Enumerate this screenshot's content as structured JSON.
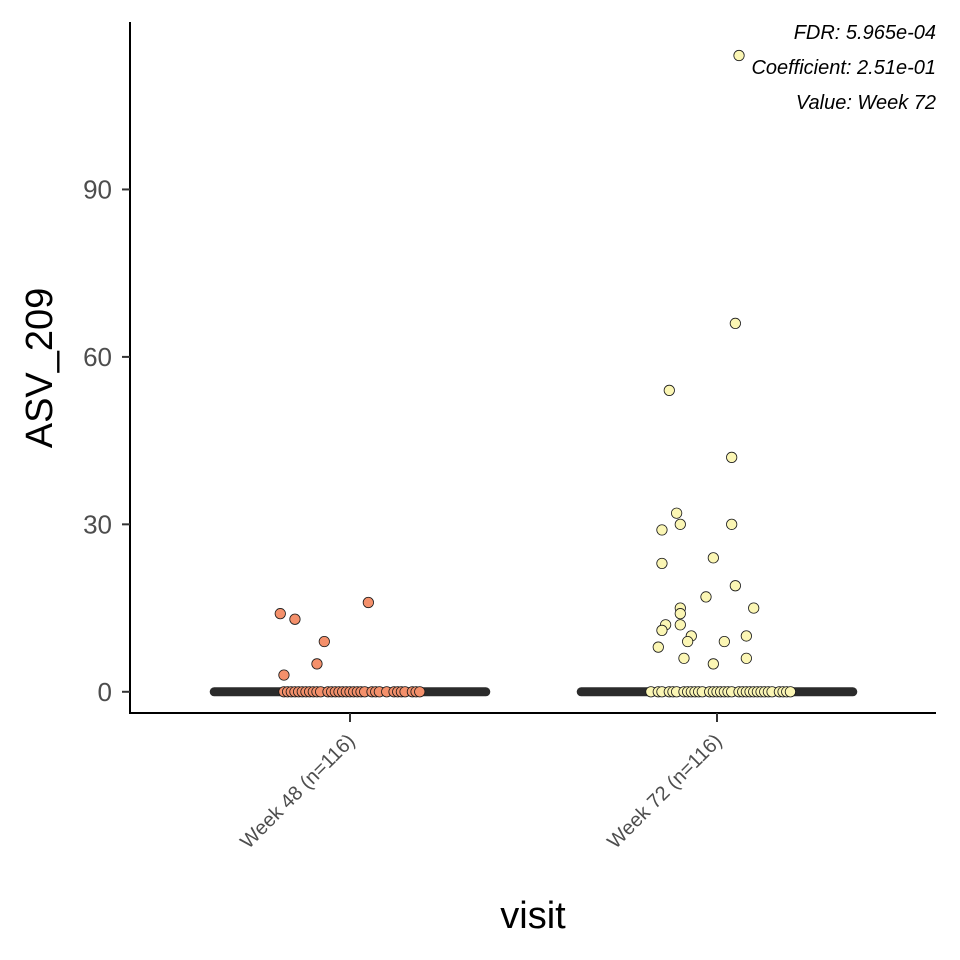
{
  "chart_data": {
    "type": "scatter",
    "xlabel": "visit",
    "ylabel": "ASV_209",
    "categories": [
      "Week 48 (n=116)",
      "Week 72 (n=116)"
    ],
    "ylim": [
      -3.8,
      120
    ],
    "yticks": [
      0,
      30,
      60,
      90
    ],
    "grid": false,
    "annotations": [
      "FDR: 5.965e-04",
      "Coefficient: 2.51e-01",
      "Value: Week 72"
    ],
    "colors": {
      "Week 48 (n=116)": "#f4906b",
      "Week 72 (n=116)": "#fbf6b4",
      "median_bar": "#2b2b2b",
      "point_stroke": "#1a1a1a"
    },
    "series": [
      {
        "category": "Week 48 (n=116)",
        "points": [
          {
            "x": -0.19,
            "y": 14
          },
          {
            "x": -0.15,
            "y": 13
          },
          {
            "x": 0.05,
            "y": 16
          },
          {
            "x": -0.07,
            "y": 9
          },
          {
            "x": -0.09,
            "y": 5
          },
          {
            "x": -0.18,
            "y": 3
          },
          {
            "x": -0.18,
            "y": 0
          },
          {
            "x": -0.17,
            "y": 0
          },
          {
            "x": -0.16,
            "y": 0
          },
          {
            "x": -0.15,
            "y": 0
          },
          {
            "x": -0.14,
            "y": 0
          },
          {
            "x": -0.13,
            "y": 0
          },
          {
            "x": -0.12,
            "y": 0
          },
          {
            "x": -0.11,
            "y": 0
          },
          {
            "x": -0.1,
            "y": 0
          },
          {
            "x": -0.09,
            "y": 0
          },
          {
            "x": -0.08,
            "y": 0
          },
          {
            "x": -0.06,
            "y": 0
          },
          {
            "x": -0.05,
            "y": 0
          },
          {
            "x": -0.04,
            "y": 0
          },
          {
            "x": -0.03,
            "y": 0
          },
          {
            "x": -0.02,
            "y": 0
          },
          {
            "x": -0.01,
            "y": 0
          },
          {
            "x": 0.0,
            "y": 0
          },
          {
            "x": 0.01,
            "y": 0
          },
          {
            "x": 0.02,
            "y": 0
          },
          {
            "x": 0.03,
            "y": 0
          },
          {
            "x": 0.04,
            "y": 0
          },
          {
            "x": 0.06,
            "y": 0
          },
          {
            "x": 0.07,
            "y": 0
          },
          {
            "x": 0.08,
            "y": 0
          },
          {
            "x": 0.1,
            "y": 0
          },
          {
            "x": 0.12,
            "y": 0
          },
          {
            "x": 0.13,
            "y": 0
          },
          {
            "x": 0.14,
            "y": 0
          },
          {
            "x": 0.15,
            "y": 0
          },
          {
            "x": 0.17,
            "y": 0
          },
          {
            "x": 0.18,
            "y": 0
          },
          {
            "x": 0.19,
            "y": 0
          }
        ],
        "median": 0
      },
      {
        "category": "Week 72 (n=116)",
        "points": [
          {
            "x": 0.06,
            "y": 114
          },
          {
            "x": 0.05,
            "y": 66
          },
          {
            "x": -0.13,
            "y": 54
          },
          {
            "x": 0.04,
            "y": 42
          },
          {
            "x": -0.11,
            "y": 32
          },
          {
            "x": 0.04,
            "y": 30
          },
          {
            "x": -0.1,
            "y": 30
          },
          {
            "x": -0.15,
            "y": 29
          },
          {
            "x": -0.01,
            "y": 24
          },
          {
            "x": -0.15,
            "y": 23
          },
          {
            "x": 0.05,
            "y": 19
          },
          {
            "x": -0.03,
            "y": 17
          },
          {
            "x": 0.1,
            "y": 15
          },
          {
            "x": -0.1,
            "y": 15
          },
          {
            "x": -0.1,
            "y": 14
          },
          {
            "x": -0.14,
            "y": 12
          },
          {
            "x": -0.15,
            "y": 11
          },
          {
            "x": -0.1,
            "y": 12
          },
          {
            "x": -0.07,
            "y": 10
          },
          {
            "x": 0.08,
            "y": 10
          },
          {
            "x": -0.08,
            "y": 9
          },
          {
            "x": 0.02,
            "y": 9
          },
          {
            "x": -0.16,
            "y": 8
          },
          {
            "x": -0.09,
            "y": 6
          },
          {
            "x": 0.08,
            "y": 6
          },
          {
            "x": -0.01,
            "y": 5
          },
          {
            "x": -0.18,
            "y": 0
          },
          {
            "x": -0.16,
            "y": 0
          },
          {
            "x": -0.15,
            "y": 0
          },
          {
            "x": -0.13,
            "y": 0
          },
          {
            "x": -0.12,
            "y": 0
          },
          {
            "x": -0.11,
            "y": 0
          },
          {
            "x": -0.09,
            "y": 0
          },
          {
            "x": -0.08,
            "y": 0
          },
          {
            "x": -0.07,
            "y": 0
          },
          {
            "x": -0.06,
            "y": 0
          },
          {
            "x": -0.05,
            "y": 0
          },
          {
            "x": -0.04,
            "y": 0
          },
          {
            "x": -0.02,
            "y": 0
          },
          {
            "x": -0.01,
            "y": 0
          },
          {
            "x": 0.0,
            "y": 0
          },
          {
            "x": 0.01,
            "y": 0
          },
          {
            "x": 0.02,
            "y": 0
          },
          {
            "x": 0.03,
            "y": 0
          },
          {
            "x": 0.04,
            "y": 0
          },
          {
            "x": 0.06,
            "y": 0
          },
          {
            "x": 0.07,
            "y": 0
          },
          {
            "x": 0.08,
            "y": 0
          },
          {
            "x": 0.09,
            "y": 0
          },
          {
            "x": 0.1,
            "y": 0
          },
          {
            "x": 0.11,
            "y": 0
          },
          {
            "x": 0.12,
            "y": 0
          },
          {
            "x": 0.13,
            "y": 0
          },
          {
            "x": 0.14,
            "y": 0
          },
          {
            "x": 0.15,
            "y": 0
          },
          {
            "x": 0.17,
            "y": 0
          },
          {
            "x": 0.18,
            "y": 0
          },
          {
            "x": 0.19,
            "y": 0
          },
          {
            "x": 0.2,
            "y": 0
          }
        ],
        "median": 0
      }
    ]
  }
}
